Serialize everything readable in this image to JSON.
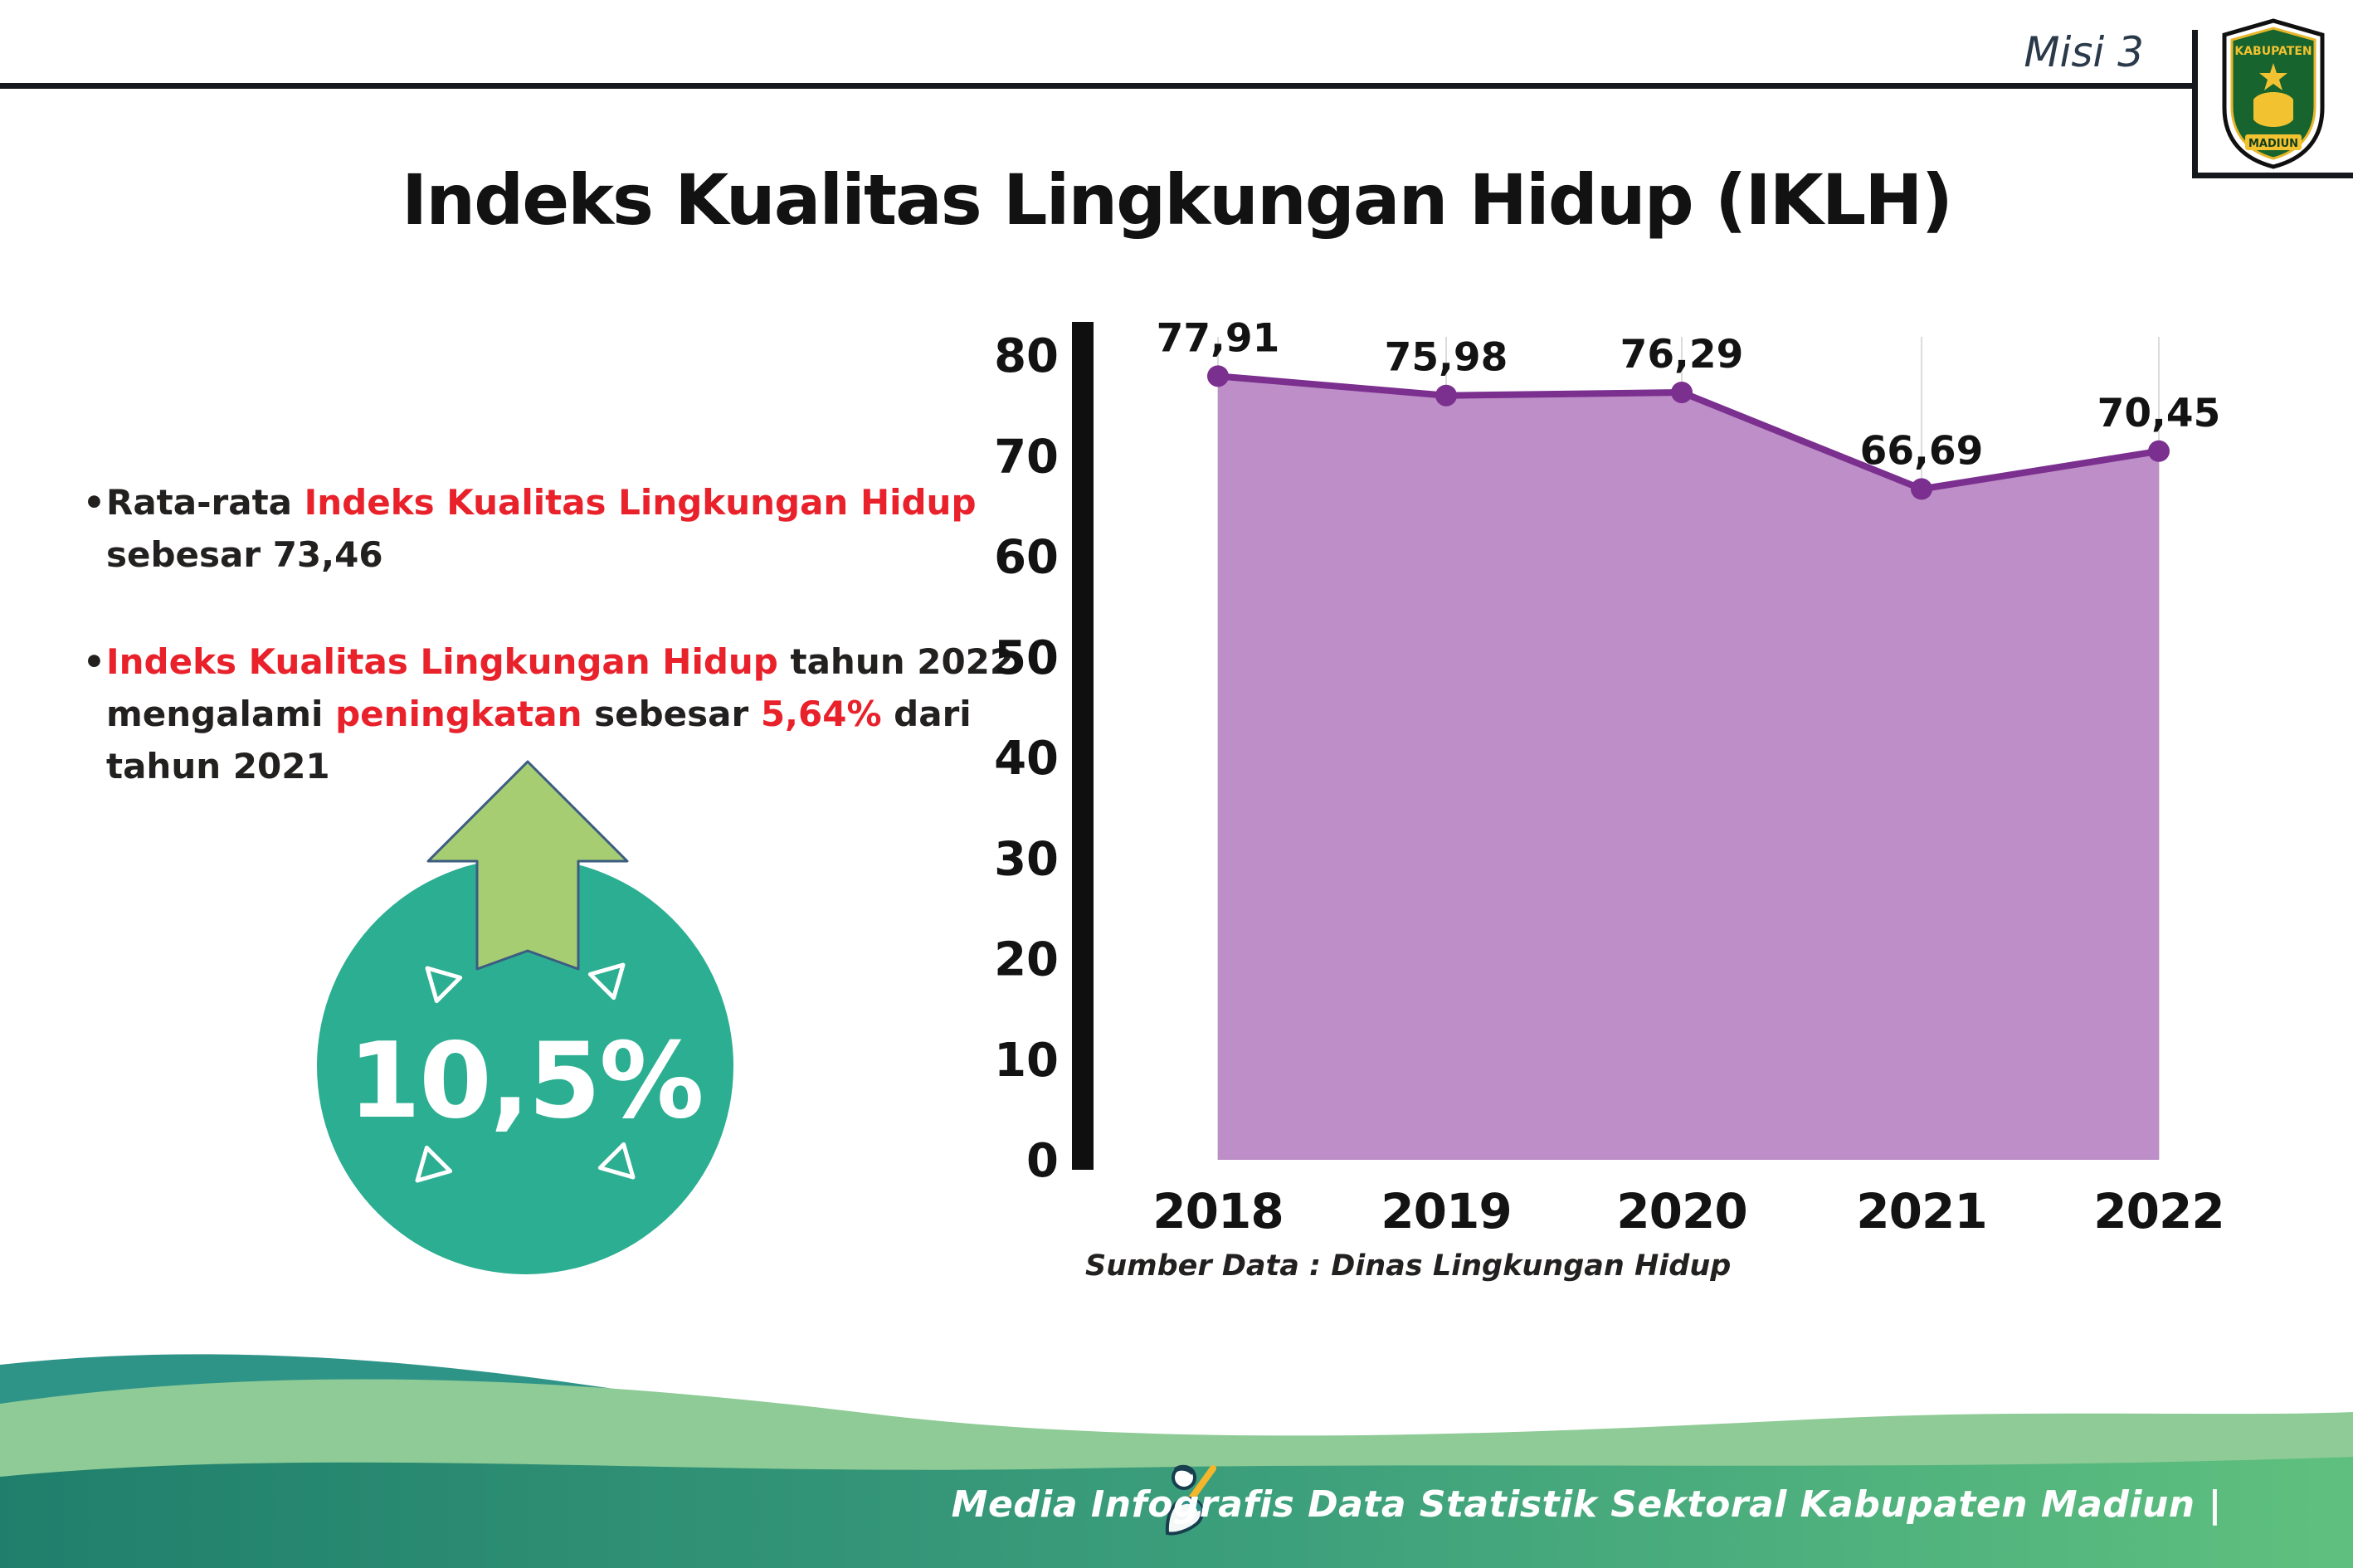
{
  "page": {
    "misi": "Misi 3",
    "title": "Indeks Kualitas Lingkungan Hidup (IKLH)"
  },
  "logo": {
    "top_text": "KABUPATEN",
    "bottom_text": "MADIUN"
  },
  "bullets": {
    "dot": "•",
    "b1": {
      "s1": "Rata-rata ",
      "s2": "Indeks Kualitas Lingkungan Hidup",
      "s3": "sebesar 73,46"
    },
    "b2": {
      "s1": "Indeks Kualitas Lingkungan Hidup",
      "s2": " tahun 2022",
      "s3": "mengalami ",
      "s4": "peningkatan",
      "s5": " sebesar ",
      "s6": "5,64%",
      "s7": " dari",
      "s8": "tahun 2021"
    }
  },
  "badge": {
    "value": "10,5%"
  },
  "chart_data": {
    "type": "area",
    "title": "Indeks Kualitas Lingkungan Hidup (IKLH)",
    "categories": [
      "2018",
      "2019",
      "2020",
      "2021",
      "2022"
    ],
    "values": [
      77.91,
      75.98,
      76.29,
      66.69,
      70.45
    ],
    "point_labels": [
      "77,91",
      "75,98",
      "76,29",
      "66,69",
      "70,45"
    ],
    "ylim": [
      0,
      80
    ],
    "yticks": [
      0,
      10,
      20,
      30,
      40,
      50,
      60,
      70,
      80
    ],
    "grid": "vertical-light",
    "legend": "none",
    "fill_color": "#bd8ec7",
    "line_color": "#7b2f8e",
    "source": "Sumber Data : Dinas Lingkungan Hidup"
  },
  "footer": {
    "credit": "Media Infografis Data Statistik Sektoral Kabupaten Madiun |"
  },
  "colors": {
    "accent_red": "#e8212b",
    "badge_teal": "#2bae91",
    "arrow_green": "#a6cd71",
    "footer_teal": "#2f9488",
    "footer_mint": "#8ecb96",
    "footer_band_start": "#1f7f6c",
    "footer_band_end": "#5fc07e"
  }
}
